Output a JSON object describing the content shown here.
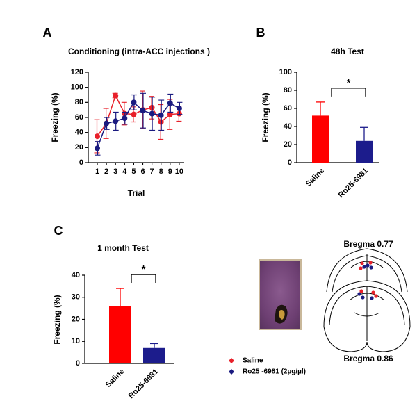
{
  "chart_data": [
    {
      "type": "line",
      "panel_label": "A",
      "title": "Conditioning (intra-ACC injections )",
      "x_label": "Trial",
      "y_label": "Freezing (%)",
      "categories": [
        "1",
        "2",
        "3",
        "4",
        "5",
        "6",
        "7",
        "8",
        "9",
        "10"
      ],
      "series": [
        {
          "name": "Saline",
          "color": "#e8202a",
          "values": [
            35,
            52,
            89,
            65,
            64,
            70,
            73,
            54,
            64,
            65
          ],
          "errors": [
            22,
            20,
            3,
            15,
            10,
            25,
            15,
            23,
            20,
            10
          ]
        },
        {
          "name": "Ro25 -6981 (2µg/µl)",
          "color": "#1a1a80",
          "values": [
            19,
            52,
            55,
            59,
            80,
            69,
            65,
            63,
            79,
            72
          ],
          "errors": [
            9,
            8,
            12,
            8,
            10,
            23,
            22,
            20,
            12,
            8
          ]
        }
      ],
      "ylim": [
        0,
        120
      ],
      "yticks": [
        0,
        20,
        40,
        60,
        80,
        100,
        120
      ]
    },
    {
      "type": "bar",
      "panel_label": "B",
      "title": "48h Test",
      "y_label": "Freezing (%)",
      "categories": [
        "Saline",
        "Ro25-6981"
      ],
      "values": [
        52,
        24
      ],
      "errors": [
        15,
        15
      ],
      "colors": [
        "#ff0000",
        "#1c1c8c"
      ],
      "annotation": "*",
      "ylim": [
        0,
        100
      ],
      "yticks": [
        0,
        20,
        40,
        60,
        80,
        100
      ]
    },
    {
      "type": "bar",
      "panel_label": "C",
      "title": "1 month  Test",
      "y_label": "Freezing (%)",
      "categories": [
        "Saline",
        "Ro25-6981"
      ],
      "values": [
        26,
        7
      ],
      "errors": [
        8,
        2
      ],
      "colors": [
        "#ff0000",
        "#1c1c8c"
      ],
      "annotation": "*",
      "ylim": [
        0,
        40
      ],
      "yticks": [
        0,
        10,
        20,
        30,
        40
      ]
    }
  ],
  "histology": {
    "bregma_top": "Bregma 0.77",
    "bregma_bottom": "Bregma 0.86"
  }
}
